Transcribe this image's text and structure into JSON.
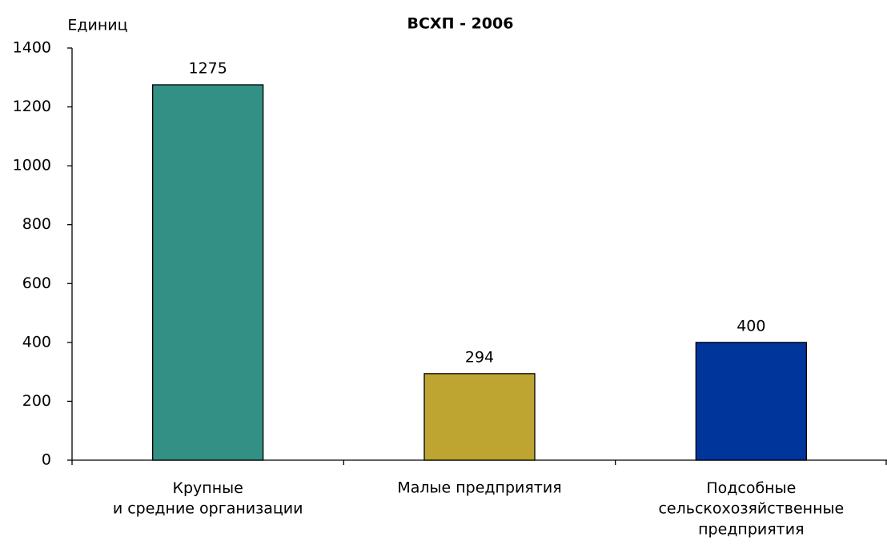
{
  "chart_data": {
    "type": "bar",
    "title": "ВСХП - 2006",
    "y_label": "Единиц",
    "categories": [
      "Крупные\nи средние организации",
      "Малые предприятия",
      "Подсобные\nсельскохозяйственные\nпредприятия"
    ],
    "values": [
      1275,
      294,
      400
    ],
    "colors": [
      "#339084",
      "#bea431",
      "#00359c"
    ],
    "ylim": [
      0,
      1400
    ],
    "yticks": [
      0,
      200,
      400,
      600,
      800,
      1000,
      1200,
      1400
    ],
    "grid": false
  }
}
